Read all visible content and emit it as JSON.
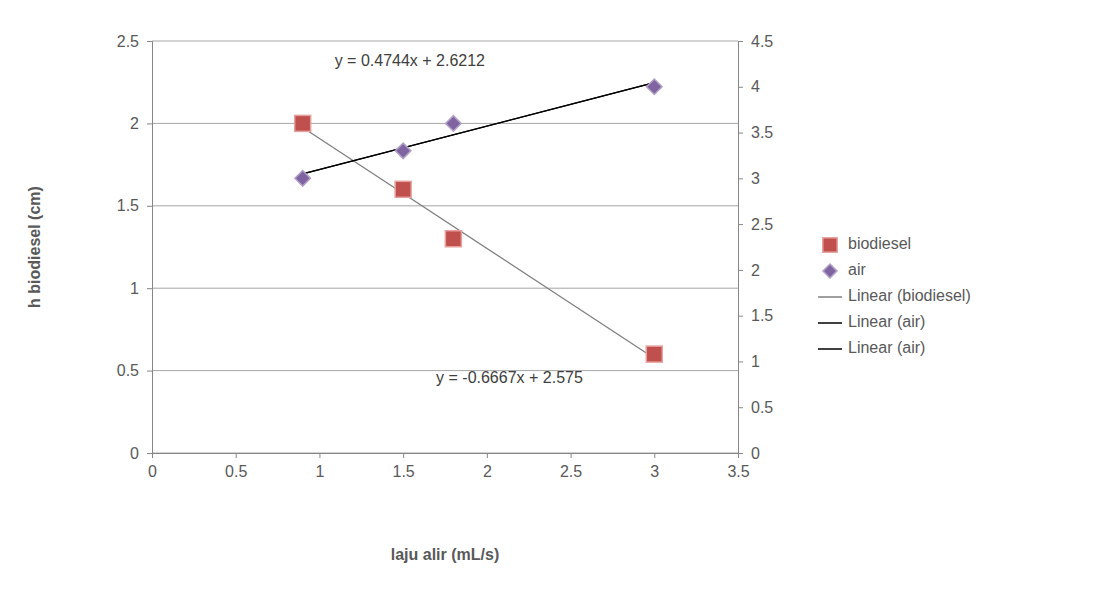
{
  "chart_data": {
    "type": "scatter",
    "x_label": "laju alir (mL/s)",
    "y_label": "h biodiesel (cm)",
    "x": [
      0.9,
      1.5,
      1.8,
      3.0
    ],
    "xlim": [
      0,
      3.5
    ],
    "xticks": [
      0,
      0.5,
      1,
      1.5,
      2,
      2.5,
      3,
      3.5
    ],
    "ylim": [
      0,
      2.5
    ],
    "yticks": [
      0,
      0.5,
      1,
      1.5,
      2,
      2.5
    ],
    "y2lim": [
      0,
      4.5
    ],
    "y2ticks": [
      0,
      0.5,
      1,
      1.5,
      2,
      2.5,
      3,
      3.5,
      4,
      4.5
    ],
    "grid": true,
    "legend": "right",
    "series": [
      {
        "name": "biodiesel",
        "color": "#c0504d",
        "marker": "square",
        "values": [
          2.0,
          1.6,
          1.3,
          0.6
        ]
      },
      {
        "name": "air",
        "color": "#8064a2",
        "marker": "diamond",
        "axis": "y2",
        "values": [
          3.0,
          3.3,
          3.6,
          4.0
        ]
      }
    ],
    "trendlines": [
      {
        "name": "Linear (biodiesel)",
        "series": "biodiesel",
        "color": "#808080",
        "slope": -0.6667,
        "intercept": 2.575,
        "label": "y = -0.6667x + 2.575"
      },
      {
        "name": "Linear (air)",
        "series": "air",
        "color": "#000000",
        "slope": 0.4744,
        "intercept": 2.6212,
        "label": "y = 0.4744x + 2.6212"
      },
      {
        "name": "Linear (air)",
        "series": "air",
        "color": "#000000",
        "slope": 0.4744,
        "intercept": 2.6212
      }
    ]
  }
}
